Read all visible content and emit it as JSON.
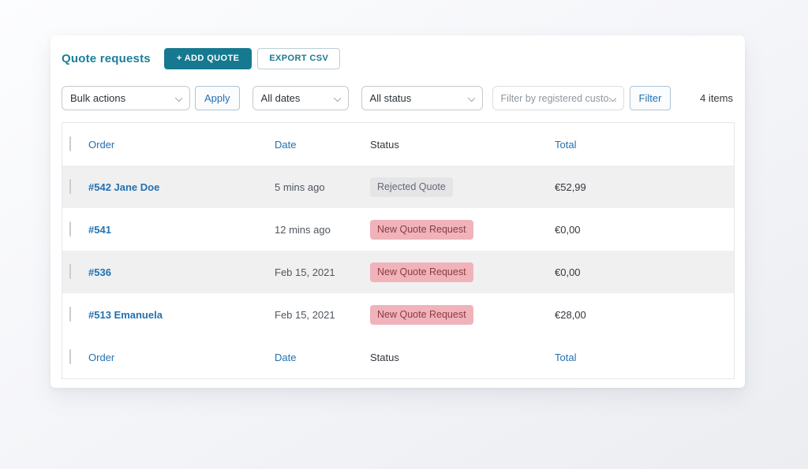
{
  "header": {
    "title": "Quote requests",
    "add_quote_label": "+ ADD QUOTE",
    "export_csv_label": "EXPORT CSV"
  },
  "filters": {
    "bulk_actions_value": "Bulk actions",
    "apply_label": "Apply",
    "all_dates_value": "All dates",
    "all_status_value": "All status",
    "customer_filter_placeholder": "Filter by registered custo...",
    "filter_label": "Filter",
    "items_count": "4 items"
  },
  "table": {
    "columns": {
      "order": "Order",
      "date": "Date",
      "status": "Status",
      "total": "Total"
    },
    "rows": [
      {
        "order": "#542 Jane Doe",
        "date": "5 mins ago",
        "status": "Rejected Quote",
        "status_type": "rejected",
        "total": "€52,99"
      },
      {
        "order": "#541",
        "date": "12 mins ago",
        "status": "New Quote Request",
        "status_type": "new",
        "total": "€0,00"
      },
      {
        "order": "#536",
        "date": "Feb 15, 2021",
        "status": "New Quote Request",
        "status_type": "new",
        "total": "€0,00"
      },
      {
        "order": "#513 Emanuela",
        "date": "Feb 15, 2021",
        "status": "New Quote Request",
        "status_type": "new",
        "total": "€28,00"
      }
    ]
  },
  "colors": {
    "accent_teal": "#16798f",
    "title_teal": "#1b7e99",
    "link_blue": "#2271b1",
    "badge_new_bg": "#f0b3ba",
    "badge_new_text": "#8d3b43",
    "badge_rejected_bg": "#e5e5e8",
    "badge_rejected_text": "#636972",
    "row_alt_bg": "#f0f0f1"
  }
}
